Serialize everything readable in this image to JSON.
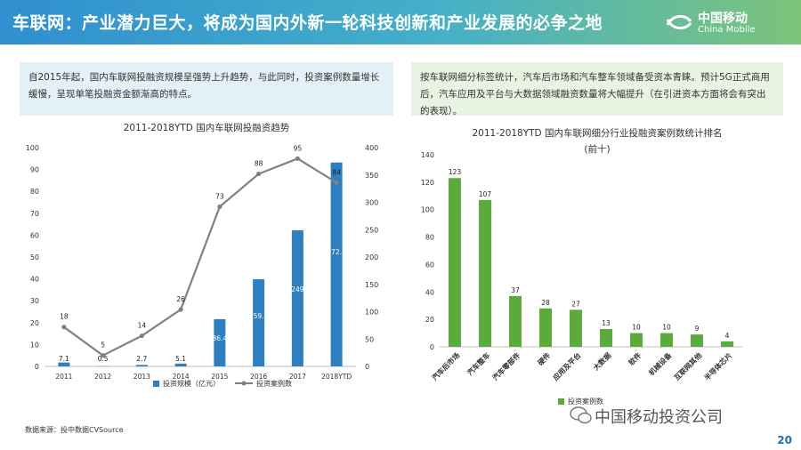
{
  "header": {
    "title": "车联网：产业潜力巨大，将成为国内外新一轮科技创新和产业发展的必争之地",
    "logo_name": "中国移动",
    "logo_en": "China Mobile"
  },
  "left_text": "自2015年起，国内车联网投融资规模呈强势上升趋势，与此同时，投资案例数量增长缓慢，呈现单笔投融资金额渐高的特点。",
  "right_text": "按车联网细分标签统计，汽车后市场和汽车整车领域备受资本青睐。预计5G正式商用后，汽车应用及平台与大数据领域融资数量将大幅提升（在引进资本方面将会有突出的表现）。",
  "source": "数据来源：投中数据CVSource",
  "watermark": "中国移动投资公司",
  "page_number": "20",
  "colors": {
    "blue": "#2e7fc0",
    "gray": "#808080",
    "green": "#5aab3c"
  },
  "chart_data": [
    {
      "type": "bar+line",
      "title": "2011-2018YTD 国内车联网投融资趋势",
      "categories": [
        "2011",
        "2012",
        "2013",
        "2014",
        "2015",
        "2016",
        "2017",
        "2018YTD"
      ],
      "series": [
        {
          "name": "投资规模（亿元）",
          "type": "bar",
          "axis": "left",
          "values": [
            7.1,
            0.5,
            2.7,
            5.1,
            86.4,
            159.3,
            249,
            372.8
          ],
          "labels": [
            "7.1",
            "0.5",
            "2.7",
            "5.1",
            "86.4",
            "159.3",
            "249",
            "372.8"
          ]
        },
        {
          "name": "投资案例数",
          "type": "line",
          "axis": "right",
          "values": [
            18,
            5,
            14,
            26,
            73,
            88,
            95,
            84
          ],
          "labels": [
            "18",
            "5",
            "14",
            "26",
            "73",
            "88",
            "95",
            "84"
          ]
        }
      ],
      "left_ylim": [
        0,
        100
      ],
      "left_ticks": [
        "0",
        "10",
        "20",
        "30",
        "40",
        "50",
        "60",
        "70",
        "80",
        "90",
        "100"
      ],
      "right_ylim": [
        0,
        400
      ],
      "right_ticks": [
        "0",
        "50",
        "100",
        "150",
        "200",
        "250",
        "300",
        "350",
        "400"
      ],
      "legend": "bottom"
    },
    {
      "type": "bar",
      "title": "2011-2018YTD 国内车联网细分行业投融资案例数统计排名",
      "subtitle": "(前十)",
      "categories": [
        "汽车后市场",
        "汽车整车",
        "汽车零部件",
        "硬件",
        "应用及平台",
        "大数据",
        "软件",
        "机械设备",
        "互联网其他",
        "半导体芯片"
      ],
      "values": [
        123,
        107,
        37,
        28,
        27,
        13,
        10,
        10,
        9,
        4
      ],
      "labels": [
        "123",
        "107",
        "37",
        "28",
        "27",
        "13",
        "10",
        "10",
        "9",
        "4"
      ],
      "ylim": [
        0,
        140
      ],
      "y_ticks": [
        "0",
        "20",
        "40",
        "60",
        "80",
        "100",
        "120",
        "140"
      ],
      "series_name": "投资案例数",
      "legend": "bottom"
    }
  ]
}
